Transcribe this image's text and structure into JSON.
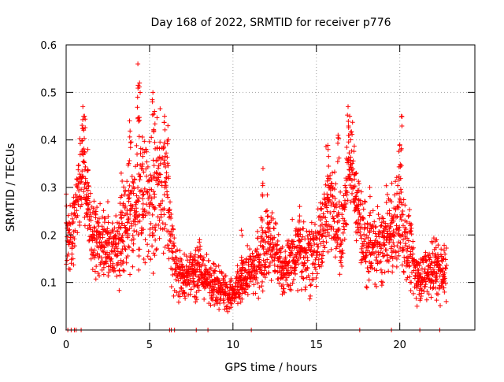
{
  "chart_data": {
    "type": "scatter",
    "title": "Day 168 of 2022, SRMTID for receiver p776",
    "xlabel": "GPS time / hours",
    "ylabel": "SRMTID / TECUs",
    "xlim": [
      0,
      24.5
    ],
    "ylim": [
      0,
      0.6
    ],
    "x_ticks": [
      0,
      5,
      10,
      15,
      20
    ],
    "y_ticks": [
      0,
      0.1,
      0.2,
      0.3,
      0.4,
      0.5,
      0.6
    ],
    "x_tick_labels": [
      "0",
      "5",
      "10",
      "15",
      "20"
    ],
    "y_tick_labels": [
      "0",
      "0.1",
      "0.2",
      "0.3",
      "0.4",
      "0.5",
      "0.6"
    ],
    "grid": true,
    "marker": "+",
    "color": "#ff0000",
    "series": [
      {
        "name": "SRMTID",
        "profile": [
          {
            "x": 0.0,
            "y": 0.22,
            "spread": 0.06
          },
          {
            "x": 0.3,
            "y": 0.18,
            "spread": 0.05
          },
          {
            "x": 1.0,
            "y": 0.36,
            "spread": 0.06
          },
          {
            "x": 1.5,
            "y": 0.2,
            "spread": 0.05
          },
          {
            "x": 2.5,
            "y": 0.16,
            "spread": 0.04
          },
          {
            "x": 3.0,
            "y": 0.18,
            "spread": 0.05
          },
          {
            "x": 3.5,
            "y": 0.22,
            "spread": 0.06
          },
          {
            "x": 4.3,
            "y": 0.28,
            "spread": 0.1
          },
          {
            "x": 5.0,
            "y": 0.25,
            "spread": 0.09
          },
          {
            "x": 5.5,
            "y": 0.3,
            "spread": 0.09
          },
          {
            "x": 6.0,
            "y": 0.28,
            "spread": 0.08
          },
          {
            "x": 6.5,
            "y": 0.14,
            "spread": 0.04
          },
          {
            "x": 7.0,
            "y": 0.11,
            "spread": 0.03
          },
          {
            "x": 8.0,
            "y": 0.12,
            "spread": 0.03
          },
          {
            "x": 9.0,
            "y": 0.1,
            "spread": 0.03
          },
          {
            "x": 10.0,
            "y": 0.07,
            "spread": 0.025
          },
          {
            "x": 10.7,
            "y": 0.11,
            "spread": 0.03
          },
          {
            "x": 11.5,
            "y": 0.14,
            "spread": 0.04
          },
          {
            "x": 12.2,
            "y": 0.2,
            "spread": 0.06
          },
          {
            "x": 13.0,
            "y": 0.12,
            "spread": 0.03
          },
          {
            "x": 14.0,
            "y": 0.17,
            "spread": 0.05
          },
          {
            "x": 15.0,
            "y": 0.16,
            "spread": 0.05
          },
          {
            "x": 15.8,
            "y": 0.28,
            "spread": 0.07
          },
          {
            "x": 16.5,
            "y": 0.2,
            "spread": 0.06
          },
          {
            "x": 17.0,
            "y": 0.36,
            "spread": 0.07
          },
          {
            "x": 17.5,
            "y": 0.25,
            "spread": 0.06
          },
          {
            "x": 18.0,
            "y": 0.17,
            "spread": 0.05
          },
          {
            "x": 19.0,
            "y": 0.18,
            "spread": 0.05
          },
          {
            "x": 20.0,
            "y": 0.23,
            "spread": 0.07
          },
          {
            "x": 20.5,
            "y": 0.18,
            "spread": 0.05
          },
          {
            "x": 21.0,
            "y": 0.11,
            "spread": 0.03
          },
          {
            "x": 22.0,
            "y": 0.13,
            "spread": 0.04
          },
          {
            "x": 22.8,
            "y": 0.12,
            "spread": 0.04
          }
        ],
        "spikes": [
          {
            "x": 1.0,
            "y": 0.47
          },
          {
            "x": 1.1,
            "y": 0.45
          },
          {
            "x": 1.3,
            "y": 0.38
          },
          {
            "x": 2.5,
            "y": 0.27
          },
          {
            "x": 3.3,
            "y": 0.33
          },
          {
            "x": 3.8,
            "y": 0.44
          },
          {
            "x": 4.3,
            "y": 0.56
          },
          {
            "x": 4.4,
            "y": 0.52
          },
          {
            "x": 4.6,
            "y": 0.38
          },
          {
            "x": 5.2,
            "y": 0.5
          },
          {
            "x": 5.3,
            "y": 0.46
          },
          {
            "x": 5.9,
            "y": 0.45
          },
          {
            "x": 6.1,
            "y": 0.43
          },
          {
            "x": 8.0,
            "y": 0.19
          },
          {
            "x": 10.5,
            "y": 0.21
          },
          {
            "x": 11.8,
            "y": 0.34
          },
          {
            "x": 12.1,
            "y": 0.24
          },
          {
            "x": 14.0,
            "y": 0.26
          },
          {
            "x": 15.7,
            "y": 0.38
          },
          {
            "x": 16.3,
            "y": 0.41
          },
          {
            "x": 16.9,
            "y": 0.47
          },
          {
            "x": 17.0,
            "y": 0.45
          },
          {
            "x": 17.4,
            "y": 0.33
          },
          {
            "x": 18.2,
            "y": 0.3
          },
          {
            "x": 19.5,
            "y": 0.27
          },
          {
            "x": 20.1,
            "y": 0.45
          },
          {
            "x": 20.0,
            "y": 0.39
          },
          {
            "x": 22.2,
            "y": 0.19
          }
        ],
        "zero_values_at_x": [
          0.1,
          0.3,
          0.5,
          0.6,
          0.9,
          6.2,
          6.3,
          6.5,
          7.8,
          8.5,
          11.1,
          17.6,
          19.5,
          21.2,
          22.4
        ]
      }
    ]
  }
}
